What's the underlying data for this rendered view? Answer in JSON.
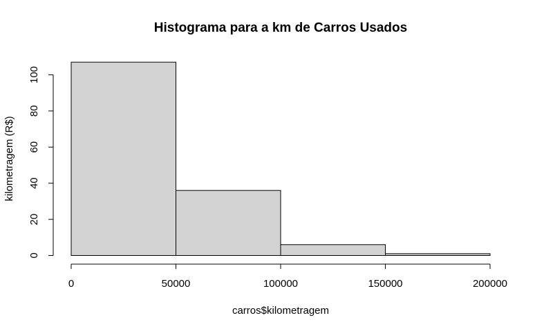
{
  "chart_data": {
    "type": "bar",
    "title": "Histograma para a km de Carros Usados",
    "xlabel": "carros$kilometragem",
    "ylabel": "kilometragem (R$)",
    "bins": [
      {
        "start": 0,
        "end": 50000,
        "count": 107
      },
      {
        "start": 50000,
        "end": 100000,
        "count": 36
      },
      {
        "start": 100000,
        "end": 150000,
        "count": 6
      },
      {
        "start": 150000,
        "end": 200000,
        "count": 1
      }
    ],
    "xlim": [
      0,
      200000
    ],
    "ylim": [
      0,
      110
    ],
    "x_ticks": [
      0,
      50000,
      100000,
      150000,
      200000
    ],
    "x_tick_labels": [
      "0",
      "50000",
      "100000",
      "150000",
      "200000"
    ],
    "y_ticks": [
      0,
      20,
      40,
      60,
      80,
      100
    ],
    "y_tick_labels": [
      "0",
      "20",
      "40",
      "60",
      "80",
      "100"
    ],
    "bar_fill": "#d3d3d3",
    "bar_stroke": "#000000",
    "grid": false
  }
}
